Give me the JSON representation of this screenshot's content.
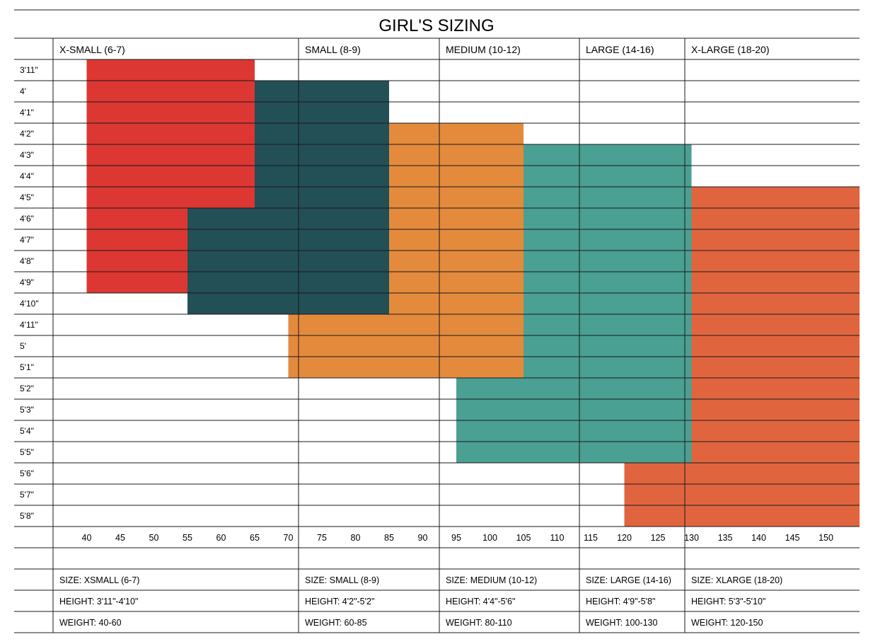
{
  "chart_data": {
    "type": "heatmap",
    "title": "GIRL'S SIZING",
    "sizes": [
      {
        "label": "X-SMALL (6-7)",
        "color": "#dc3732"
      },
      {
        "label": "SMALL (8-9)",
        "color": "#234f57"
      },
      {
        "label": "MEDIUM (10-12)",
        "color": "#e48a3d"
      },
      {
        "label": "LARGE (14-16)",
        "color": "#4aa092"
      },
      {
        "label": "X-LARGE (18-20)",
        "color": "#e0653f"
      }
    ],
    "heights": [
      "3'11\"",
      "4'",
      "4'1\"",
      "4'2\"",
      "4'3\"",
      "4'4\"",
      "4'5\"",
      "4'6\"",
      "4'7\"",
      "4'8\"",
      "4'9\"",
      "4'10\"",
      "4'11\"",
      "5'",
      "5'1\"",
      "5'2\"",
      "5'3\"",
      "5'4\"",
      "5'5\"",
      "5'6\"",
      "5'7\"",
      "5'8\""
    ],
    "weights": [
      40,
      45,
      50,
      55,
      60,
      65,
      70,
      75,
      80,
      85,
      90,
      95,
      100,
      105,
      110,
      115,
      120,
      125,
      130,
      135,
      140,
      145,
      150
    ],
    "regions": [
      {
        "size": "X-SMALL (6-7)",
        "rects": [
          {
            "w_from": 40,
            "w_to": 65,
            "h_from": "3'11\"",
            "h_to": "4'5\""
          },
          {
            "w_from": 40,
            "w_to": 55,
            "h_from": "4'6\"",
            "h_to": "4'9\""
          }
        ]
      },
      {
        "size": "SMALL (8-9)",
        "rects": [
          {
            "w_from": 65,
            "w_to": 85,
            "h_from": "4'",
            "h_to": "4'5\""
          },
          {
            "w_from": 55,
            "w_to": 85,
            "h_from": "4'6\"",
            "h_to": "4'10\""
          }
        ]
      },
      {
        "size": "MEDIUM (10-12)",
        "rects": [
          {
            "w_from": 85,
            "w_to": 105,
            "h_from": "4'2\"",
            "h_to": "4'10\""
          },
          {
            "w_from": 70,
            "w_to": 105,
            "h_from": "4'11\"",
            "h_to": "5'1\""
          }
        ]
      },
      {
        "size": "LARGE (14-16)",
        "rects": [
          {
            "w_from": 105,
            "w_to": 130,
            "h_from": "4'3\"",
            "h_to": "5'1\""
          },
          {
            "w_from": 95,
            "w_to": 130,
            "h_from": "5'2\"",
            "h_to": "5'5\""
          }
        ]
      },
      {
        "size": "X-LARGE (18-20)",
        "rects": [
          {
            "w_from": 130,
            "w_to": 155,
            "h_from": "4'5\"",
            "h_to": "5'8\""
          },
          {
            "w_from": 120,
            "w_to": 130,
            "h_from": "5'6\"",
            "h_to": "5'8\""
          }
        ]
      }
    ],
    "info_rows": [
      [
        "SIZE: XSMALL (6-7)",
        "SIZE: SMALL (8-9)",
        "SIZE: MEDIUM (10-12)",
        "SIZE: LARGE  (14-16)",
        "SIZE: XLARGE (18-20)"
      ],
      [
        "HEIGHT: 3'11\"-4'10\"",
        "HEIGHT: 4'2\"-5'2\"",
        "HEIGHT: 4'4\"-5'6\"",
        "HEIGHT: 4'9\"-5'8\"",
        "HEIGHT: 5'3\"-5'10\""
      ],
      [
        "WEIGHT: 40-60",
        "WEIGHT: 60-85",
        "WEIGHT: 80-110",
        "WEIGHT: 100-130",
        "WEIGHT: 120-150"
      ]
    ]
  }
}
